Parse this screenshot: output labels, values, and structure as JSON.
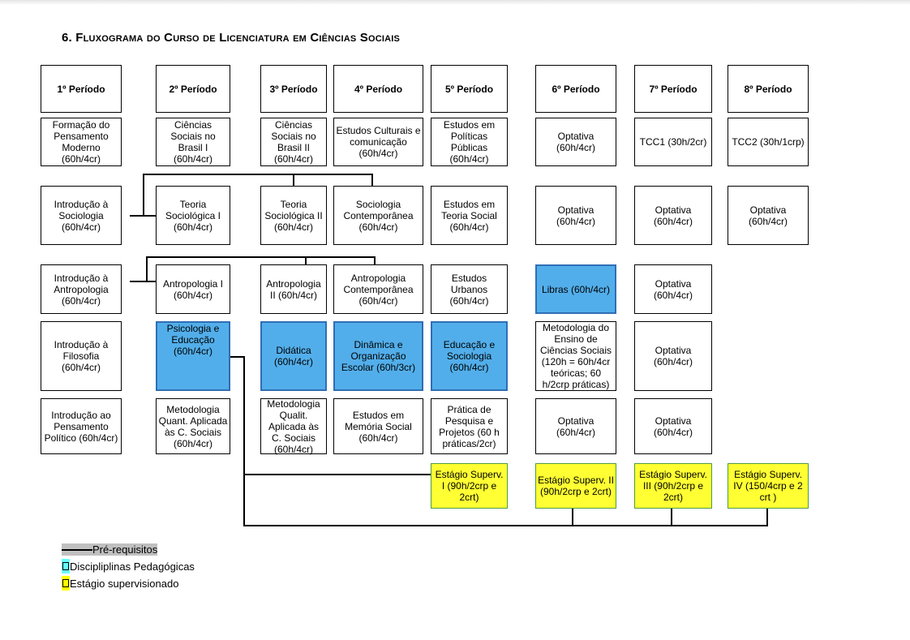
{
  "title": "6. Fluxograma do Curso de Licenciatura em Ciências Sociais",
  "periods": [
    "1º Período",
    "2º Período",
    "3º Período",
    "4º Período",
    "5º Período",
    "6º Período",
    "7º Período",
    "8º Período"
  ],
  "rows": [
    [
      {
        "text": "Formação do Pensamento Moderno (60h/4cr)"
      },
      {
        "text": "Ciências Sociais no Brasil I (60h/4cr)"
      },
      {
        "text": "Ciências Sociais no Brasil II (60h/4cr)"
      },
      {
        "text": "Estudos Culturais e comunicação (60h/4cr)"
      },
      {
        "text": "Estudos em Políticas Públicas (60h/4cr)"
      },
      {
        "text": "Optativa (60h/4cr)"
      },
      {
        "text": "TCC1 (30h/2cr)"
      },
      {
        "text": "TCC2 (30h/1crp)"
      }
    ],
    [
      {
        "text": "Introdução à Sociologia (60h/4cr)"
      },
      {
        "text": "Teoria Sociológica I (60h/4cr)"
      },
      {
        "text": "Teoria Sociológica II (60h/4cr)"
      },
      {
        "text": "Sociologia Contemporânea (60h/4cr)"
      },
      {
        "text": "Estudos em Teoria Social (60h/4cr)"
      },
      {
        "text": "Optativa (60h/4cr)"
      },
      {
        "text": "Optativa (60h/4cr)"
      },
      {
        "text": "Optativa (60h/4cr)"
      }
    ],
    [
      {
        "text": "Introdução à Antropologia (60h/4cr)"
      },
      {
        "text": "Antropologia I (60h/4cr)"
      },
      {
        "text": "Antropologia II (60h/4cr)"
      },
      {
        "text": "Antropologia Contemporânea (60h/4cr)"
      },
      {
        "text": "Estudos Urbanos (60h/4cr)"
      },
      {
        "text": "Libras (60h/4cr)",
        "type": "pedagogica"
      },
      {
        "text": "Optativa (60h/4cr)"
      },
      null
    ],
    [
      {
        "text": "Introdução à Filosofia (60h/4cr)"
      },
      {
        "text": "Psicologia e Educação (60h/4cr)",
        "type": "pedagogica"
      },
      {
        "text": "Didática (60h/4cr)",
        "type": "pedagogica"
      },
      {
        "text": "Dinâmica e Organização Escolar (60h/3cr)",
        "type": "pedagogica"
      },
      {
        "text": "Educação e Sociologia (60h/4cr)",
        "type": "pedagogica"
      },
      {
        "text": "Metodologia do Ensino de Ciências Sociais (120h = 60h/4cr teóricas; 60 h/2crp práticas)"
      },
      {
        "text": "Optativa (60h/4cr)"
      },
      null
    ],
    [
      {
        "text": "Introdução ao Pensamento Político (60h/4cr)"
      },
      {
        "text": "Metodologia Quant. Aplicada às C. Sociais (60h/4cr)"
      },
      {
        "text": "Metodologia Qualit. Aplicada às C. Sociais (60h/4cr)"
      },
      {
        "text": "Estudos em Memória Social (60h/4cr)"
      },
      {
        "text": "Prática de Pesquisa e Projetos (60 h práticas/2cr)"
      },
      {
        "text": "Optativa (60h/4cr)"
      },
      {
        "text": "Optativa (60h/4cr)"
      },
      null
    ],
    [
      null,
      null,
      null,
      null,
      {
        "text": "Estágio Superv. I (90h/2crp e 2crt)",
        "type": "estagio"
      },
      {
        "text": "Estágio Superv. II (90h/2crp e 2crt)",
        "type": "estagio"
      },
      {
        "text": "Estágio Superv. III (90h/2crp e 2crt)",
        "type": "estagio"
      },
      {
        "text": "Estágio Superv. IV (150/4crp e 2 crt )",
        "type": "estagio"
      }
    ]
  ],
  "legend": {
    "prerequisites": "Pré-requisitos",
    "pedagogical": "Discipliplinas Pedagógicas",
    "internship": "Estágio supervisionado"
  },
  "colors": {
    "pedagogica": "#52aeea",
    "estagio": "#ffff33",
    "legend_prereq_bg": "#c0c0c0",
    "legend_ped_swatch": "#66ffff",
    "legend_est_swatch": "#ffff00"
  }
}
